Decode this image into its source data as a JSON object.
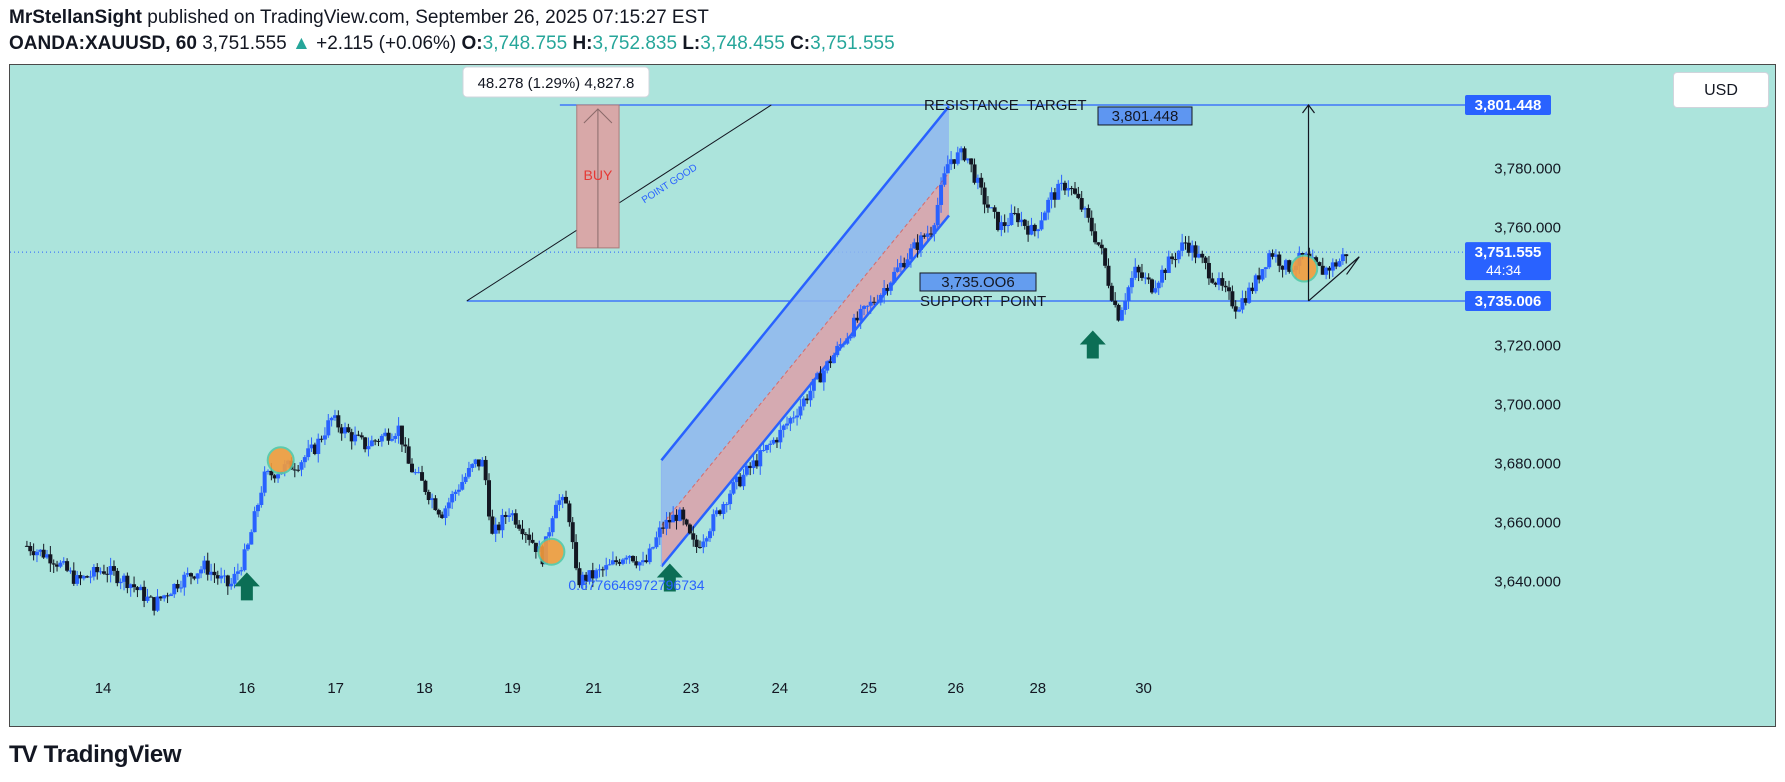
{
  "header": {
    "author": "MrStellanSight",
    "published_text": "published on TradingView.com, September 26, 2025 07:15:27 EST",
    "symbol": "OANDA:XAUUSD, 60",
    "last": "3,751.555",
    "change_arrow": "▲",
    "change": "+2.115 (+0.06%)",
    "o_label": "O:",
    "o": "3,748.755",
    "h_label": "H:",
    "h": "3,752.835",
    "l_label": "L:",
    "l": "3,748.455",
    "c_label": "C:",
    "c": "3,751.555"
  },
  "currency_button": "USD",
  "footer": {
    "logo_mark": "TV",
    "logo_text": "TradingView"
  },
  "colors": {
    "background": "#ace4dc",
    "bull": "#2962ff",
    "bear": "#131722",
    "channel_fill": "#8fb7ee",
    "channel_inner": "#e0a7a7",
    "buy_box": "#d8a8a8",
    "arrow_green": "#0b6e55",
    "price_label_bg": "#2962ff"
  },
  "chart_data": {
    "type": "candlestick",
    "symbol": "OANDA:XAUUSD",
    "interval": "60",
    "ylim": [
      3615,
      3815
    ],
    "y_ticks": [
      3640,
      3660,
      3680,
      3700,
      3720,
      3760,
      3780
    ],
    "y_tick_labels": [
      "3,640.000",
      "3,660.000",
      "3,680.000",
      "3,700.000",
      "3,720.000",
      "3,760.000",
      "3,780.000"
    ],
    "x_ticks": [
      {
        "label": "14",
        "day": 14
      },
      {
        "label": "16",
        "day": 16
      },
      {
        "label": "17",
        "day": 17
      },
      {
        "label": "18",
        "day": 18
      },
      {
        "label": "19",
        "day": 19
      },
      {
        "label": "21",
        "day": 21
      },
      {
        "label": "23",
        "day": 23
      },
      {
        "label": "24",
        "day": 24
      },
      {
        "label": "25",
        "day": 25
      },
      {
        "label": "26",
        "day": 26
      },
      {
        "label": "28",
        "day": 28
      },
      {
        "label": "30",
        "day": 30
      }
    ],
    "price_path": [
      [
        13.0,
        3652
      ],
      [
        13.3,
        3648
      ],
      [
        13.6,
        3640
      ],
      [
        13.9,
        3644
      ],
      [
        14.2,
        3640
      ],
      [
        14.5,
        3632
      ],
      [
        14.8,
        3640
      ],
      [
        15.1,
        3645
      ],
      [
        15.4,
        3638
      ],
      [
        15.6,
        3650
      ],
      [
        15.8,
        3675
      ],
      [
        16.0,
        3678
      ],
      [
        16.2,
        3680
      ],
      [
        16.4,
        3685
      ],
      [
        16.6,
        3695
      ],
      [
        16.8,
        3690
      ],
      [
        17.0,
        3686
      ],
      [
        17.2,
        3689
      ],
      [
        17.4,
        3692
      ],
      [
        17.5,
        3680
      ],
      [
        17.7,
        3672
      ],
      [
        17.9,
        3663
      ],
      [
        18.1,
        3672
      ],
      [
        18.3,
        3680
      ],
      [
        18.4,
        3680
      ],
      [
        18.5,
        3655
      ],
      [
        18.7,
        3664
      ],
      [
        18.9,
        3657
      ],
      [
        19.1,
        3648
      ],
      [
        19.25,
        3668
      ],
      [
        19.4,
        3665
      ],
      [
        19.5,
        3640
      ],
      [
        19.7,
        3642
      ],
      [
        19.9,
        3645
      ],
      [
        20.1,
        3650
      ],
      [
        20.3,
        3645
      ],
      [
        20.5,
        3658
      ],
      [
        20.7,
        3663
      ],
      [
        20.9,
        3651
      ],
      [
        21.1,
        3660
      ],
      [
        21.3,
        3670
      ],
      [
        21.6,
        3680
      ],
      [
        21.9,
        3690
      ],
      [
        22.2,
        3702
      ],
      [
        22.5,
        3715
      ],
      [
        22.8,
        3728
      ],
      [
        23.1,
        3738
      ],
      [
        23.4,
        3750
      ],
      [
        23.7,
        3760
      ],
      [
        23.9,
        3783
      ],
      [
        24.1,
        3785
      ],
      [
        24.3,
        3770
      ],
      [
        24.5,
        3760
      ],
      [
        24.7,
        3764
      ],
      [
        24.9,
        3758
      ],
      [
        25.1,
        3770
      ],
      [
        25.3,
        3775
      ],
      [
        25.5,
        3765
      ],
      [
        25.7,
        3752
      ],
      [
        25.8,
        3740
      ],
      [
        25.9,
        3730
      ],
      [
        26.0,
        3738
      ],
      [
        26.1,
        3745
      ],
      [
        26.3,
        3740
      ],
      [
        26.5,
        3748
      ],
      [
        26.7,
        3755
      ],
      [
        26.9,
        3748
      ],
      [
        27.1,
        3740
      ],
      [
        27.3,
        3733
      ],
      [
        27.5,
        3740
      ],
      [
        27.7,
        3752
      ],
      [
        27.9,
        3746
      ],
      [
        28.1,
        3750
      ],
      [
        28.3,
        3745
      ],
      [
        28.5,
        3748
      ],
      [
        28.6,
        3751.555
      ]
    ],
    "last_price": "3,751.555",
    "countdown": "44:34",
    "levels": [
      {
        "name": "RESISTANCE  TARGET",
        "value": 3801.448,
        "label": "3,801.448"
      },
      {
        "name": "SUPPORT  POINT",
        "value": 3735.006,
        "label": "3,735.006",
        "box_label": "3,735.OO6"
      }
    ],
    "annotations": {
      "resistance_text": "RESISTANCE  TARGET",
      "resistance_box": "3,801.448",
      "support_text": "SUPPORT  POINT",
      "support_box": "3,735.OO6",
      "buy_label": "BUY",
      "diagonal_label": "POINT  GOOD",
      "measure_tooltip": "48.278 (1.29%) 4,827.8",
      "fib_text": "0.6776646972796734"
    },
    "channel": {
      "upper_start": [
        20.5,
        3681
      ],
      "upper_end": [
        23.9,
        3801
      ],
      "lower_start": [
        20.5,
        3645
      ],
      "lower_end": [
        23.9,
        3764
      ]
    },
    "up_arrows_days": [
      15.6,
      20.6,
      25.6
    ]
  }
}
